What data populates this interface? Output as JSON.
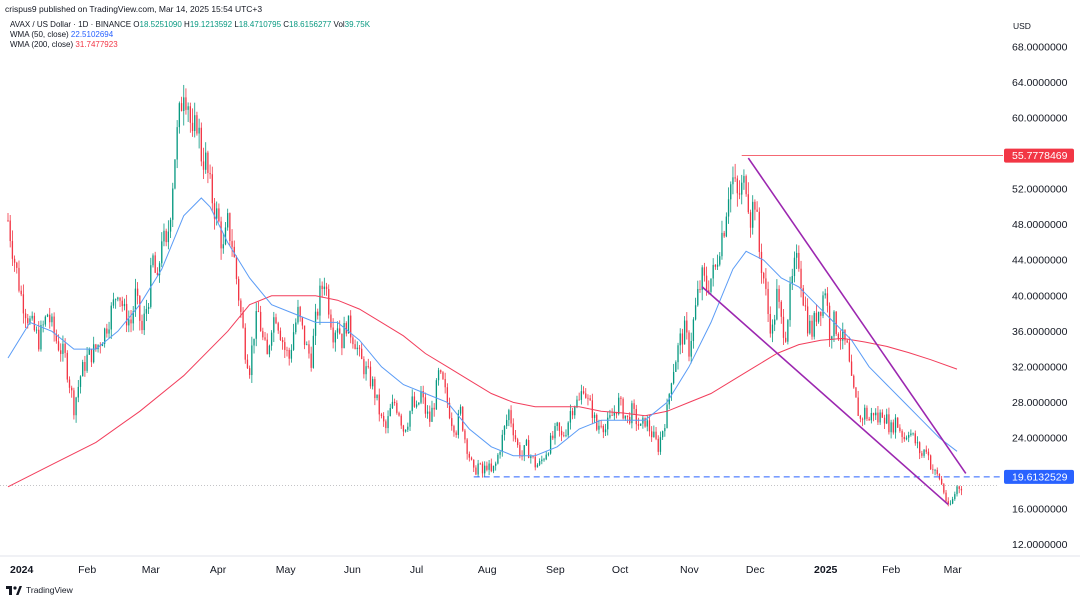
{
  "header": {
    "publisher": "crispus9 published on TradingView.com, Mar 14, 2025 15:54 UTC+3",
    "symbol": "AVAX / US Dollar · 1D · BINANCE",
    "ohlc": {
      "o_label": "O",
      "o": "18.5251090",
      "h_label": "H",
      "h": "19.1213592",
      "l_label": "L",
      "l": "18.4710795",
      "c_label": "C",
      "c": "18.6156277",
      "vol_label": "Vol",
      "vol": "39.75K"
    },
    "wma50_label": "WMA (50, close)",
    "wma50_value": "22.5102694",
    "wma200_label": "WMA (200, close)",
    "wma200_value": "31.7477923",
    "currency": "USD"
  },
  "footer": {
    "brand": "TradingView"
  },
  "colors": {
    "up": "#089981",
    "down": "#f23645",
    "wma50": "#5b9cf6",
    "wma200": "#f23e5c",
    "channel": "#9c27b0",
    "resistance_line": "#f23645",
    "support_line": "#2962ff"
  },
  "chart_data": {
    "type": "candlestick",
    "y_axis": {
      "min": 10,
      "max": 70,
      "scale": "linear",
      "ticks": [
        {
          "value": 68,
          "label": "68.0000000"
        },
        {
          "value": 64,
          "label": "64.0000000"
        },
        {
          "value": 60,
          "label": "60.0000000"
        },
        {
          "value": 56,
          "label": "56.0000000"
        },
        {
          "value": 52,
          "label": "52.0000000"
        },
        {
          "value": 48,
          "label": "48.0000000"
        },
        {
          "value": 44,
          "label": "44.0000000"
        },
        {
          "value": 40,
          "label": "40.0000000"
        },
        {
          "value": 36,
          "label": "36.0000000"
        },
        {
          "value": 32,
          "label": "32.0000000"
        },
        {
          "value": 28,
          "label": "28.0000000"
        },
        {
          "value": 24,
          "label": "24.0000000"
        },
        {
          "value": 20,
          "label": "20.0000000"
        },
        {
          "value": 16,
          "label": "16.0000000"
        },
        {
          "value": 12,
          "label": "12.0000000"
        }
      ]
    },
    "x_axis": {
      "labels": [
        {
          "label": "2024",
          "day": 0,
          "bold": true
        },
        {
          "label": "Feb",
          "day": 31
        },
        {
          "label": "Mar",
          "day": 60
        },
        {
          "label": "Apr",
          "day": 91
        },
        {
          "label": "May",
          "day": 121
        },
        {
          "label": "Jun",
          "day": 152
        },
        {
          "label": "Jul",
          "day": 182
        },
        {
          "label": "Aug",
          "day": 213
        },
        {
          "label": "Sep",
          "day": 244
        },
        {
          "label": "Oct",
          "day": 274
        },
        {
          "label": "Nov",
          "day": 305
        },
        {
          "label": "Dec",
          "day": 335
        },
        {
          "label": "2025",
          "day": 366,
          "bold": true
        },
        {
          "label": "Feb",
          "day": 397
        },
        {
          "label": "Mar",
          "day": 425
        }
      ],
      "last_day": 437
    },
    "close_path": [
      [
        0,
        48.5
      ],
      [
        3,
        44
      ],
      [
        6,
        40
      ],
      [
        10,
        37
      ],
      [
        14,
        35
      ],
      [
        18,
        38
      ],
      [
        22,
        35
      ],
      [
        26,
        33
      ],
      [
        30,
        27.5
      ],
      [
        33,
        31
      ],
      [
        36,
        33
      ],
      [
        40,
        34
      ],
      [
        44,
        36
      ],
      [
        48,
        39
      ],
      [
        50,
        41
      ],
      [
        53,
        38
      ],
      [
        56,
        37
      ],
      [
        58,
        40
      ],
      [
        61,
        36
      ],
      [
        64,
        40
      ],
      [
        66,
        44
      ],
      [
        68,
        41
      ],
      [
        70,
        47
      ],
      [
        72,
        45
      ],
      [
        74,
        50
      ],
      [
        76,
        56
      ],
      [
        78,
        60
      ],
      [
        80,
        64
      ],
      [
        82,
        62
      ],
      [
        84,
        57
      ],
      [
        86,
        60
      ],
      [
        88,
        56
      ],
      [
        90,
        55
      ],
      [
        92,
        52
      ],
      [
        94,
        50
      ],
      [
        96,
        48
      ],
      [
        98,
        45
      ],
      [
        100,
        48
      ],
      [
        102,
        46
      ],
      [
        104,
        42
      ],
      [
        106,
        38
      ],
      [
        108,
        34
      ],
      [
        110,
        32
      ],
      [
        112,
        36
      ],
      [
        114,
        38
      ],
      [
        116,
        35
      ],
      [
        118,
        33
      ],
      [
        120,
        37
      ],
      [
        122,
        38
      ],
      [
        124,
        36
      ],
      [
        126,
        34
      ],
      [
        128,
        33
      ],
      [
        130,
        36
      ],
      [
        132,
        38
      ],
      [
        134,
        36
      ],
      [
        136,
        34
      ],
      [
        138,
        33
      ],
      [
        140,
        37
      ],
      [
        142,
        40
      ],
      [
        144,
        42
      ],
      [
        146,
        39
      ],
      [
        148,
        36
      ],
      [
        150,
        37
      ],
      [
        152,
        35
      ],
      [
        154,
        37
      ],
      [
        156,
        36
      ],
      [
        158,
        35
      ],
      [
        160,
        33
      ],
      [
        162,
        32
      ],
      [
        164,
        31
      ],
      [
        166,
        30
      ],
      [
        168,
        28
      ],
      [
        170,
        26
      ],
      [
        172,
        25
      ],
      [
        174,
        27
      ],
      [
        176,
        28
      ],
      [
        178,
        27
      ],
      [
        180,
        25
      ],
      [
        182,
        26
      ],
      [
        184,
        28
      ],
      [
        186,
        27
      ],
      [
        188,
        29
      ],
      [
        190,
        27
      ],
      [
        192,
        26
      ],
      [
        194,
        28
      ],
      [
        196,
        31
      ],
      [
        198,
        30
      ],
      [
        200,
        28
      ],
      [
        202,
        26
      ],
      [
        204,
        25
      ],
      [
        206,
        27
      ],
      [
        208,
        24
      ],
      [
        210,
        22
      ],
      [
        212,
        20
      ],
      [
        214,
        21
      ],
      [
        216,
        20
      ],
      [
        218,
        21
      ],
      [
        220,
        20
      ],
      [
        222,
        21
      ],
      [
        224,
        23
      ],
      [
        226,
        25
      ],
      [
        228,
        27
      ],
      [
        230,
        25
      ],
      [
        232,
        23
      ],
      [
        234,
        22
      ],
      [
        236,
        23
      ],
      [
        238,
        22
      ],
      [
        240,
        21
      ],
      [
        242,
        21
      ],
      [
        244,
        22
      ],
      [
        246,
        23
      ],
      [
        248,
        24
      ],
      [
        250,
        25
      ],
      [
        252,
        24
      ],
      [
        254,
        25
      ],
      [
        256,
        27
      ],
      [
        258,
        28
      ],
      [
        260,
        28
      ],
      [
        262,
        30
      ],
      [
        264,
        28
      ],
      [
        266,
        27
      ],
      [
        268,
        25
      ],
      [
        270,
        26
      ],
      [
        272,
        25
      ],
      [
        274,
        26
      ],
      [
        276,
        27
      ],
      [
        278,
        28
      ],
      [
        280,
        27
      ],
      [
        282,
        26
      ],
      [
        284,
        27
      ],
      [
        286,
        26
      ],
      [
        288,
        25
      ],
      [
        290,
        26
      ],
      [
        292,
        25
      ],
      [
        294,
        24
      ],
      [
        296,
        23
      ],
      [
        298,
        25
      ],
      [
        300,
        27
      ],
      [
        302,
        31
      ],
      [
        304,
        33
      ],
      [
        306,
        35
      ],
      [
        308,
        36
      ],
      [
        310,
        34
      ],
      [
        312,
        37
      ],
      [
        314,
        40
      ],
      [
        316,
        42
      ],
      [
        318,
        41
      ],
      [
        320,
        42
      ],
      [
        322,
        43
      ],
      [
        324,
        46
      ],
      [
        326,
        48
      ],
      [
        328,
        52
      ],
      [
        330,
        53
      ],
      [
        332,
        51
      ],
      [
        334,
        52
      ],
      [
        336,
        53
      ],
      [
        338,
        49
      ],
      [
        340,
        51
      ],
      [
        342,
        45
      ],
      [
        344,
        42
      ],
      [
        346,
        38
      ],
      [
        348,
        36
      ],
      [
        350,
        40
      ],
      [
        352,
        37
      ],
      [
        354,
        36
      ],
      [
        356,
        40
      ],
      [
        358,
        43
      ],
      [
        360,
        44
      ],
      [
        362,
        40
      ],
      [
        364,
        37
      ],
      [
        366,
        36
      ],
      [
        368,
        38
      ],
      [
        370,
        39
      ],
      [
        372,
        41
      ],
      [
        374,
        36
      ],
      [
        376,
        37
      ],
      [
        378,
        36
      ],
      [
        380,
        35
      ],
      [
        382,
        34
      ],
      [
        384,
        30
      ],
      [
        386,
        28
      ],
      [
        388,
        26
      ],
      [
        390,
        27
      ],
      [
        392,
        26
      ],
      [
        394,
        27
      ],
      [
        396,
        26
      ],
      [
        398,
        27
      ],
      [
        400,
        26
      ],
      [
        402,
        25
      ],
      [
        404,
        26
      ],
      [
        406,
        25
      ],
      [
        408,
        24
      ],
      [
        410,
        25
      ],
      [
        412,
        24
      ],
      [
        414,
        23
      ],
      [
        416,
        22
      ],
      [
        418,
        23
      ],
      [
        420,
        21
      ],
      [
        422,
        20
      ],
      [
        424,
        19.5
      ],
      [
        426,
        18
      ],
      [
        428,
        16
      ],
      [
        430,
        17
      ],
      [
        432,
        18.5
      ],
      [
        434,
        18.6
      ]
    ],
    "wma50": [
      [
        0,
        33
      ],
      [
        10,
        37
      ],
      [
        20,
        36
      ],
      [
        30,
        34
      ],
      [
        40,
        34
      ],
      [
        50,
        36
      ],
      [
        60,
        39
      ],
      [
        70,
        43
      ],
      [
        80,
        49
      ],
      [
        88,
        51
      ],
      [
        92,
        50
      ],
      [
        100,
        46
      ],
      [
        110,
        42
      ],
      [
        120,
        39
      ],
      [
        130,
        38
      ],
      [
        140,
        37
      ],
      [
        150,
        37
      ],
      [
        160,
        35
      ],
      [
        170,
        32
      ],
      [
        180,
        30
      ],
      [
        190,
        29
      ],
      [
        200,
        28
      ],
      [
        210,
        25
      ],
      [
        220,
        23
      ],
      [
        230,
        22
      ],
      [
        240,
        22
      ],
      [
        250,
        23
      ],
      [
        260,
        25
      ],
      [
        270,
        26
      ],
      [
        280,
        26
      ],
      [
        290,
        26
      ],
      [
        300,
        28
      ],
      [
        310,
        32
      ],
      [
        320,
        37
      ],
      [
        330,
        43
      ],
      [
        336,
        45
      ],
      [
        344,
        44
      ],
      [
        352,
        42
      ],
      [
        360,
        41
      ],
      [
        368,
        39
      ],
      [
        376,
        37
      ],
      [
        384,
        35
      ],
      [
        392,
        32
      ],
      [
        400,
        30
      ],
      [
        408,
        28
      ],
      [
        416,
        26
      ],
      [
        424,
        24
      ],
      [
        432,
        22.5
      ]
    ],
    "wma200": [
      [
        0,
        18.5
      ],
      [
        20,
        21
      ],
      [
        40,
        23.5
      ],
      [
        60,
        27
      ],
      [
        80,
        31
      ],
      [
        100,
        36
      ],
      [
        110,
        39
      ],
      [
        120,
        40
      ],
      [
        130,
        40
      ],
      [
        140,
        40
      ],
      [
        150,
        39.5
      ],
      [
        160,
        38.5
      ],
      [
        170,
        37
      ],
      [
        180,
        35.5
      ],
      [
        190,
        33.5
      ],
      [
        200,
        32
      ],
      [
        210,
        30.5
      ],
      [
        220,
        29
      ],
      [
        230,
        28
      ],
      [
        240,
        27.5
      ],
      [
        250,
        27.5
      ],
      [
        260,
        27.5
      ],
      [
        270,
        27
      ],
      [
        280,
        26.8
      ],
      [
        290,
        26.5
      ],
      [
        300,
        27
      ],
      [
        310,
        28
      ],
      [
        320,
        29
      ],
      [
        330,
        30.5
      ],
      [
        340,
        32
      ],
      [
        350,
        33.5
      ],
      [
        360,
        34.5
      ],
      [
        370,
        35
      ],
      [
        380,
        35.2
      ],
      [
        390,
        34.8
      ],
      [
        400,
        34.3
      ],
      [
        410,
        33.6
      ],
      [
        420,
        32.8
      ],
      [
        432,
        31.75
      ]
    ],
    "annotations": {
      "resistance": {
        "value": 55.7778469,
        "label": "55.7778469",
        "from_day": 334
      },
      "support": {
        "value": 19.6132529,
        "label": "19.6132529",
        "from_day": 212
      },
      "last_close": {
        "value": 18.6156277
      },
      "channel_upper": [
        [
          337,
          55.5
        ],
        [
          436,
          20
        ]
      ],
      "channel_lower": [
        [
          316,
          41
        ],
        [
          428,
          16.5
        ]
      ]
    }
  }
}
